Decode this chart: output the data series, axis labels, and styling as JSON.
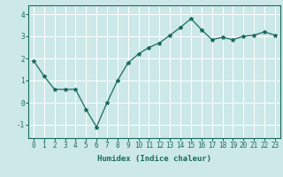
{
  "x": [
    0,
    1,
    2,
    3,
    4,
    5,
    6,
    7,
    8,
    9,
    10,
    11,
    12,
    13,
    14,
    15,
    16,
    17,
    18,
    19,
    20,
    21,
    22,
    23
  ],
  "y": [
    1.9,
    1.2,
    0.6,
    0.6,
    0.6,
    -0.3,
    -1.1,
    0.0,
    1.0,
    1.8,
    2.2,
    2.5,
    2.7,
    3.05,
    3.4,
    3.8,
    3.3,
    2.85,
    2.95,
    2.85,
    3.0,
    3.05,
    3.2,
    3.05
  ],
  "line_color": "#1a6b5e",
  "marker": "*",
  "marker_size": 3,
  "bg_color": "#cce8e8",
  "grid_color": "#ffffff",
  "xlabel": "Humidex (Indice chaleur)",
  "xlim": [
    -0.5,
    23.5
  ],
  "ylim": [
    -1.6,
    4.4
  ],
  "yticks": [
    -1,
    0,
    1,
    2,
    3,
    4
  ],
  "xticks": [
    0,
    1,
    2,
    3,
    4,
    5,
    6,
    7,
    8,
    9,
    10,
    11,
    12,
    13,
    14,
    15,
    16,
    17,
    18,
    19,
    20,
    21,
    22,
    23
  ],
  "tick_label_size": 5.5,
  "xlabel_size": 6.5,
  "line_width": 0.9
}
